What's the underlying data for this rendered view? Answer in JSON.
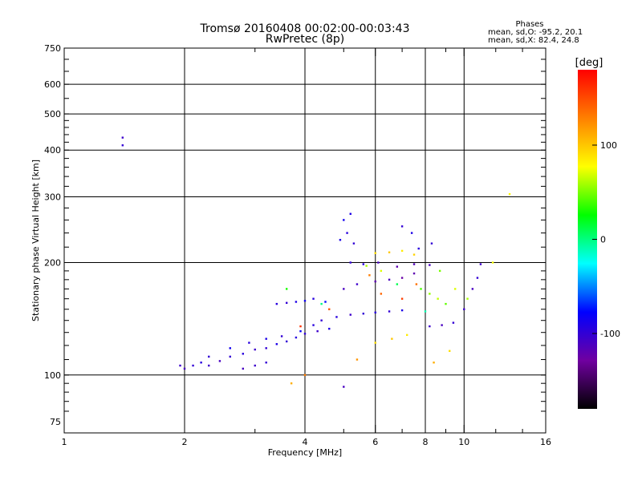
{
  "chart_data": {
    "type": "scatter",
    "title": "Tromsø 20160408 00:02:00-00:03:43",
    "subtitle": "RwPretec (8p)",
    "stats": {
      "heading": "Phases",
      "line1": "mean, sd,O: -95.2, 20.1",
      "line2": "mean, sd,X:  82.4, 24.8"
    },
    "xlabel": "Frequency [MHz]",
    "ylabel": "Stationary phase Virtual Height [km]",
    "x_scale": "log",
    "y_scale": "log",
    "xlim": [
      1,
      16
    ],
    "ylim": [
      70,
      750
    ],
    "x_ticks": [
      {
        "value": 1,
        "label": "1"
      },
      {
        "value": 2,
        "label": "2"
      },
      {
        "value": 4,
        "label": "4"
      },
      {
        "value": 6,
        "label": "6"
      },
      {
        "value": 8,
        "label": "8"
      },
      {
        "value": 10,
        "label": "10"
      },
      {
        "value": 16,
        "label": "16"
      }
    ],
    "y_ticks": [
      {
        "value": 75,
        "label": "75"
      },
      {
        "value": 100,
        "label": "100"
      },
      {
        "value": 200,
        "label": "200"
      },
      {
        "value": 300,
        "label": "300"
      },
      {
        "value": 400,
        "label": "400"
      },
      {
        "value": 500,
        "label": "500"
      },
      {
        "value": 600,
        "label": "600"
      },
      {
        "value": 750,
        "label": "750"
      }
    ],
    "grid": true,
    "x_grid": [
      2,
      4,
      6,
      8,
      10
    ],
    "y_grid": [
      100,
      200,
      300,
      400,
      500,
      600
    ],
    "colorbar": {
      "unit": "[deg]",
      "range": [
        -180,
        180
      ],
      "ticks": [
        {
          "value": 100,
          "label": "100"
        },
        {
          "value": 0,
          "label": "0"
        },
        {
          "value": -100,
          "label": "-100"
        }
      ],
      "stops": [
        "#000000",
        "#7000a0",
        "#0000ff",
        "#00ffff",
        "#00ff00",
        "#ffff00",
        "#ff8000",
        "#ff0000"
      ]
    },
    "series": [
      {
        "values": [
          [
            1.4,
            432,
            -105
          ],
          [
            1.4,
            412,
            -100
          ],
          [
            1.95,
            106,
            -105
          ],
          [
            2.0,
            104,
            -110
          ],
          [
            2.1,
            106,
            -100
          ],
          [
            2.2,
            108,
            -95
          ],
          [
            2.3,
            106,
            -105
          ],
          [
            2.45,
            109,
            -110
          ],
          [
            2.6,
            112,
            -100
          ],
          [
            2.8,
            114,
            -95
          ],
          [
            3.0,
            117,
            -105
          ],
          [
            3.2,
            118,
            -100
          ],
          [
            3.4,
            121,
            -90
          ],
          [
            3.6,
            123,
            -100
          ],
          [
            3.8,
            126,
            -95
          ],
          [
            4.0,
            129,
            -100
          ],
          [
            4.3,
            131,
            -105
          ],
          [
            4.6,
            133,
            -90
          ],
          [
            2.3,
            112,
            -100
          ],
          [
            2.6,
            118,
            -85
          ],
          [
            2.9,
            122,
            -95
          ],
          [
            3.2,
            125,
            -90
          ],
          [
            3.5,
            127,
            -100
          ],
          [
            3.9,
            131,
            -80
          ],
          [
            4.2,
            136,
            -95
          ],
          [
            2.8,
            104,
            -110
          ],
          [
            3.0,
            106,
            -105
          ],
          [
            3.2,
            108,
            -100
          ],
          [
            3.4,
            155,
            -95
          ],
          [
            3.6,
            156,
            -100
          ],
          [
            3.8,
            157,
            -90
          ],
          [
            4.0,
            158,
            -85
          ],
          [
            4.2,
            160,
            -95
          ],
          [
            4.5,
            157,
            -75
          ],
          [
            4.4,
            140,
            -100
          ],
          [
            4.8,
            143,
            -95
          ],
          [
            5.2,
            145,
            -105
          ],
          [
            5.6,
            146,
            -100
          ],
          [
            6.0,
            147,
            -95
          ],
          [
            6.5,
            148,
            -100
          ],
          [
            7.0,
            149,
            -90
          ],
          [
            5.0,
            170,
            -110
          ],
          [
            5.4,
            175,
            -105
          ],
          [
            6.0,
            178,
            -120
          ],
          [
            6.5,
            180,
            -110
          ],
          [
            7.0,
            182,
            -125
          ],
          [
            7.5,
            187,
            -120
          ],
          [
            5.2,
            200,
            -100
          ],
          [
            5.6,
            198,
            -95
          ],
          [
            6.1,
            200,
            -110
          ],
          [
            6.8,
            195,
            -120
          ],
          [
            7.5,
            198,
            -115
          ],
          [
            8.2,
            197,
            -110
          ],
          [
            4.9,
            230,
            -90
          ],
          [
            5.1,
            240,
            -95
          ],
          [
            5.3,
            225,
            -100
          ],
          [
            5.0,
            260,
            -85
          ],
          [
            5.2,
            270,
            -90
          ],
          [
            7.0,
            250,
            -100
          ],
          [
            7.4,
            240,
            -90
          ],
          [
            7.7,
            218,
            -95
          ],
          [
            8.3,
            225,
            -100
          ],
          [
            8.2,
            135,
            -105
          ],
          [
            8.8,
            136,
            -110
          ],
          [
            9.4,
            138,
            -100
          ],
          [
            10.0,
            150,
            -105
          ],
          [
            10.5,
            170,
            -110
          ],
          [
            10.8,
            182,
            -100
          ],
          [
            11.0,
            198,
            -105
          ],
          [
            6.0,
            212,
            90
          ],
          [
            6.5,
            213,
            100
          ],
          [
            7.0,
            215,
            85
          ],
          [
            7.5,
            210,
            95
          ],
          [
            5.7,
            196,
            60
          ],
          [
            6.2,
            190,
            70
          ],
          [
            7.8,
            170,
            40
          ],
          [
            8.2,
            165,
            55
          ],
          [
            8.6,
            160,
            65
          ],
          [
            9.0,
            155,
            45
          ],
          [
            9.5,
            170,
            70
          ],
          [
            10.2,
            160,
            60
          ],
          [
            8.7,
            190,
            50
          ],
          [
            6.0,
            122,
            90
          ],
          [
            6.6,
            125,
            100
          ],
          [
            7.2,
            128,
            85
          ],
          [
            5.4,
            110,
            120
          ],
          [
            9.2,
            116,
            90
          ],
          [
            8.4,
            108,
            110
          ],
          [
            6.2,
            165,
            140
          ],
          [
            7.0,
            160,
            155
          ],
          [
            5.8,
            185,
            130
          ],
          [
            4.6,
            150,
            145
          ],
          [
            3.9,
            135,
            160
          ],
          [
            7.6,
            175,
            135
          ],
          [
            3.6,
            170,
            30
          ],
          [
            4.4,
            155,
            0
          ],
          [
            6.8,
            175,
            10
          ],
          [
            8.0,
            148,
            -10
          ],
          [
            4.0,
            100,
            130
          ],
          [
            3.7,
            95,
            110
          ],
          [
            5.0,
            93,
            -110
          ],
          [
            13.0,
            305,
            80
          ],
          [
            11.8,
            200,
            75
          ]
        ]
      }
    ]
  }
}
